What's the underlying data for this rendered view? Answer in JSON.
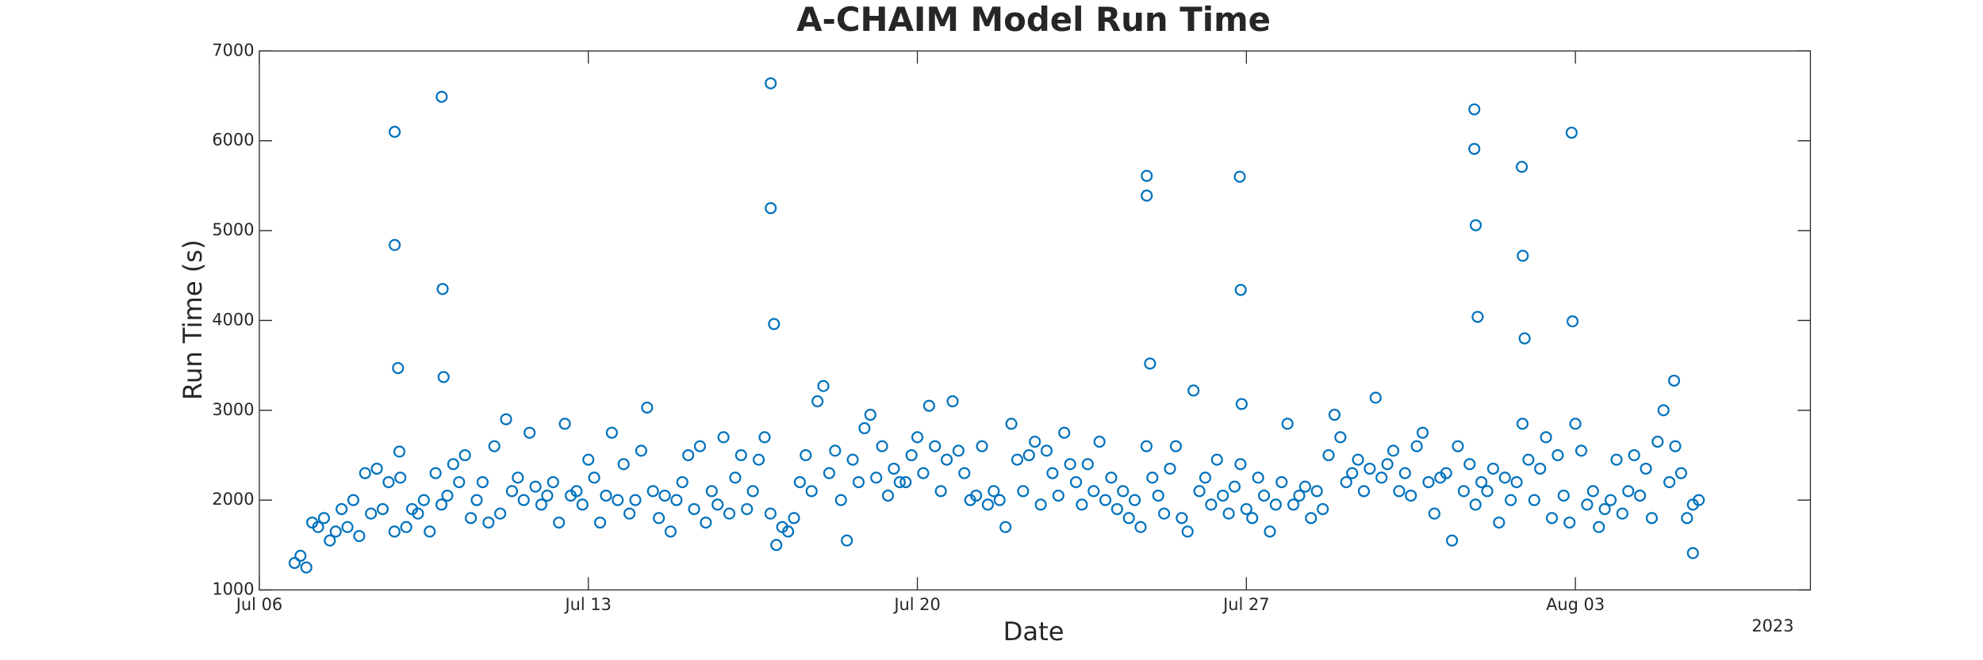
{
  "chart_data": {
    "type": "scatter",
    "title": "A-CHAIM Model Run Time",
    "xlabel": "Date",
    "ylabel": "Run Time (s)",
    "year_label": "2023",
    "color": "#0072bd",
    "xlim": [
      6,
      39
    ],
    "xticks": [
      {
        "value": 6,
        "label": "Jul 06"
      },
      {
        "value": 13,
        "label": "Jul 13"
      },
      {
        "value": 20,
        "label": "Jul 20"
      },
      {
        "value": 27,
        "label": "Jul 27"
      },
      {
        "value": 34,
        "label": "Aug 03"
      }
    ],
    "ylim": [
      1000,
      7000
    ],
    "yticks": [
      1000,
      2000,
      3000,
      4000,
      5000,
      6000,
      7000
    ],
    "x": [
      6.75,
      6.875,
      7,
      7.125,
      7.25,
      7.375,
      7.5,
      7.625,
      7.75,
      7.875,
      8,
      8.125,
      8.25,
      8.375,
      8.5,
      8.625,
      8.75,
      8.875,
      9,
      9.125,
      9.25,
      9.375,
      9.5,
      9.625,
      9.75,
      9.875,
      10,
      10.125,
      10.25,
      10.375,
      10.5,
      10.625,
      10.75,
      10.875,
      11,
      11.125,
      11.25,
      11.375,
      11.5,
      11.625,
      11.75,
      11.875,
      12,
      12.125,
      12.25,
      12.375,
      12.5,
      12.625,
      12.75,
      12.875,
      13,
      13.125,
      13.25,
      13.375,
      13.5,
      13.625,
      13.75,
      13.875,
      14,
      14.125,
      14.25,
      14.375,
      14.5,
      14.625,
      14.75,
      14.875,
      15,
      15.125,
      15.25,
      15.375,
      15.5,
      15.625,
      15.75,
      15.875,
      16,
      16.125,
      16.25,
      16.375,
      16.5,
      16.625,
      16.75,
      16.875,
      17,
      17.125,
      17.25,
      17.375,
      17.5,
      17.625,
      17.75,
      17.875,
      18,
      18.125,
      18.25,
      18.375,
      18.5,
      18.625,
      18.75,
      18.875,
      19,
      19.125,
      19.25,
      19.375,
      19.5,
      19.625,
      19.75,
      19.875,
      20,
      20.125,
      20.25,
      20.375,
      20.5,
      20.625,
      20.75,
      20.875,
      21,
      21.125,
      21.25,
      21.375,
      21.5,
      21.625,
      21.75,
      21.875,
      22,
      22.125,
      22.25,
      22.375,
      22.5,
      22.625,
      22.75,
      22.875,
      23,
      23.125,
      23.25,
      23.375,
      23.5,
      23.625,
      23.75,
      23.875,
      24,
      24.125,
      24.25,
      24.375,
      24.5,
      24.625,
      24.75,
      24.875,
      25,
      25.125,
      25.25,
      25.375,
      25.5,
      25.625,
      25.75,
      25.875,
      26,
      26.125,
      26.25,
      26.375,
      26.5,
      26.625,
      26.75,
      26.875,
      27,
      27.125,
      27.25,
      27.375,
      27.5,
      27.625,
      27.75,
      27.875,
      28,
      28.125,
      28.25,
      28.375,
      28.5,
      28.625,
      28.75,
      28.875,
      29,
      29.125,
      29.25,
      29.375,
      29.5,
      29.625,
      29.75,
      29.875,
      30,
      30.125,
      30.25,
      30.375,
      30.5,
      30.625,
      30.75,
      30.875,
      31,
      31.125,
      31.25,
      31.375,
      31.5,
      31.625,
      31.75,
      31.875,
      32,
      32.125,
      32.25,
      32.375,
      32.5,
      32.625,
      32.75,
      32.875,
      33,
      33.125,
      33.25,
      33.375,
      33.5,
      33.625,
      33.75,
      33.875,
      34,
      34.125,
      34.25,
      34.375,
      34.5,
      34.625,
      34.75,
      34.875,
      35,
      35.125,
      35.25,
      35.375,
      35.5,
      35.625,
      35.75,
      35.875,
      36,
      36.125,
      36.25,
      36.375,
      36.5,
      36.625,
      8.88,
      8.88,
      8.95,
      8.98,
      9.88,
      9.9,
      9.92,
      16.88,
      16.88,
      16.95,
      24.88,
      24.88,
      24.95,
      26.86,
      26.88,
      26.9,
      31.85,
      31.85,
      31.88,
      31.92,
      32.86,
      32.88,
      32.92,
      33.92,
      33.94,
      36.1,
      36.5
    ],
    "values": [
      1300,
      1380,
      1250,
      1750,
      1700,
      1800,
      1550,
      1650,
      1900,
      1700,
      2000,
      1600,
      2300,
      1850,
      2350,
      1900,
      2200,
      1650,
      2250,
      1700,
      1900,
      1850,
      2000,
      1650,
      2300,
      1950,
      2050,
      2400,
      2200,
      2500,
      1800,
      2000,
      2200,
      1750,
      2600,
      1850,
      2900,
      2100,
      2250,
      2000,
      2750,
      2150,
      1950,
      2050,
      2200,
      1750,
      2850,
      2050,
      2100,
      1950,
      2450,
      2250,
      1750,
      2050,
      2750,
      2000,
      2400,
      1850,
      2000,
      2550,
      3030,
      2100,
      1800,
      2050,
      1650,
      2000,
      2200,
      2500,
      1900,
      2600,
      1750,
      2100,
      1950,
      2700,
      1850,
      2250,
      2500,
      1900,
      2100,
      2450,
      2700,
      1850,
      1500,
      1700,
      1650,
      1800,
      2200,
      2500,
      2100,
      3100,
      3270,
      2300,
      2550,
      2000,
      1550,
      2450,
      2200,
      2800,
      2950,
      2250,
      2600,
      2050,
      2350,
      2200,
      2200,
      2500,
      2700,
      2300,
      3050,
      2600,
      2100,
      2450,
      3100,
      2550,
      2300,
      2000,
      2050,
      2600,
      1950,
      2100,
      2000,
      1700,
      2850,
      2450,
      2100,
      2500,
      2650,
      1950,
      2550,
      2300,
      2050,
      2750,
      2400,
      2200,
      1950,
      2400,
      2100,
      2650,
      2000,
      2250,
      1900,
      2100,
      1800,
      2000,
      1700,
      2600,
      2250,
      2050,
      1850,
      2350,
      2600,
      1800,
      1650,
      3220,
      2100,
      2250,
      1950,
      2450,
      2050,
      1850,
      2150,
      2400,
      1900,
      1800,
      2250,
      2050,
      1650,
      1950,
      2200,
      2850,
      1950,
      2050,
      2150,
      1800,
      2100,
      1900,
      2500,
      2950,
      2700,
      2200,
      2300,
      2450,
      2100,
      2350,
      3140,
      2250,
      2400,
      2550,
      2100,
      2300,
      2050,
      2600,
      2750,
      2200,
      1850,
      2250,
      2300,
      1550,
      2600,
      2100,
      2400,
      1950,
      2200,
      2100,
      2350,
      1750,
      2250,
      2000,
      2200,
      2850,
      2450,
      2000,
      2350,
      2700,
      1800,
      2500,
      2050,
      1750,
      2850,
      2550,
      1950,
      2100,
      1700,
      1900,
      2000,
      2450,
      1850,
      2100,
      2500,
      2050,
      2350,
      1800,
      2650,
      3000,
      2200,
      2600,
      2300,
      1800,
      1950,
      2000,
      6100,
      4840,
      3470,
      2540,
      6490,
      4350,
      3370,
      6640,
      5250,
      3960,
      5610,
      5390,
      3520,
      5600,
      4340,
      3070,
      6350,
      5910,
      5060,
      4040,
      5710,
      4720,
      3800,
      6090,
      3990,
      3330,
      1410
    ]
  }
}
